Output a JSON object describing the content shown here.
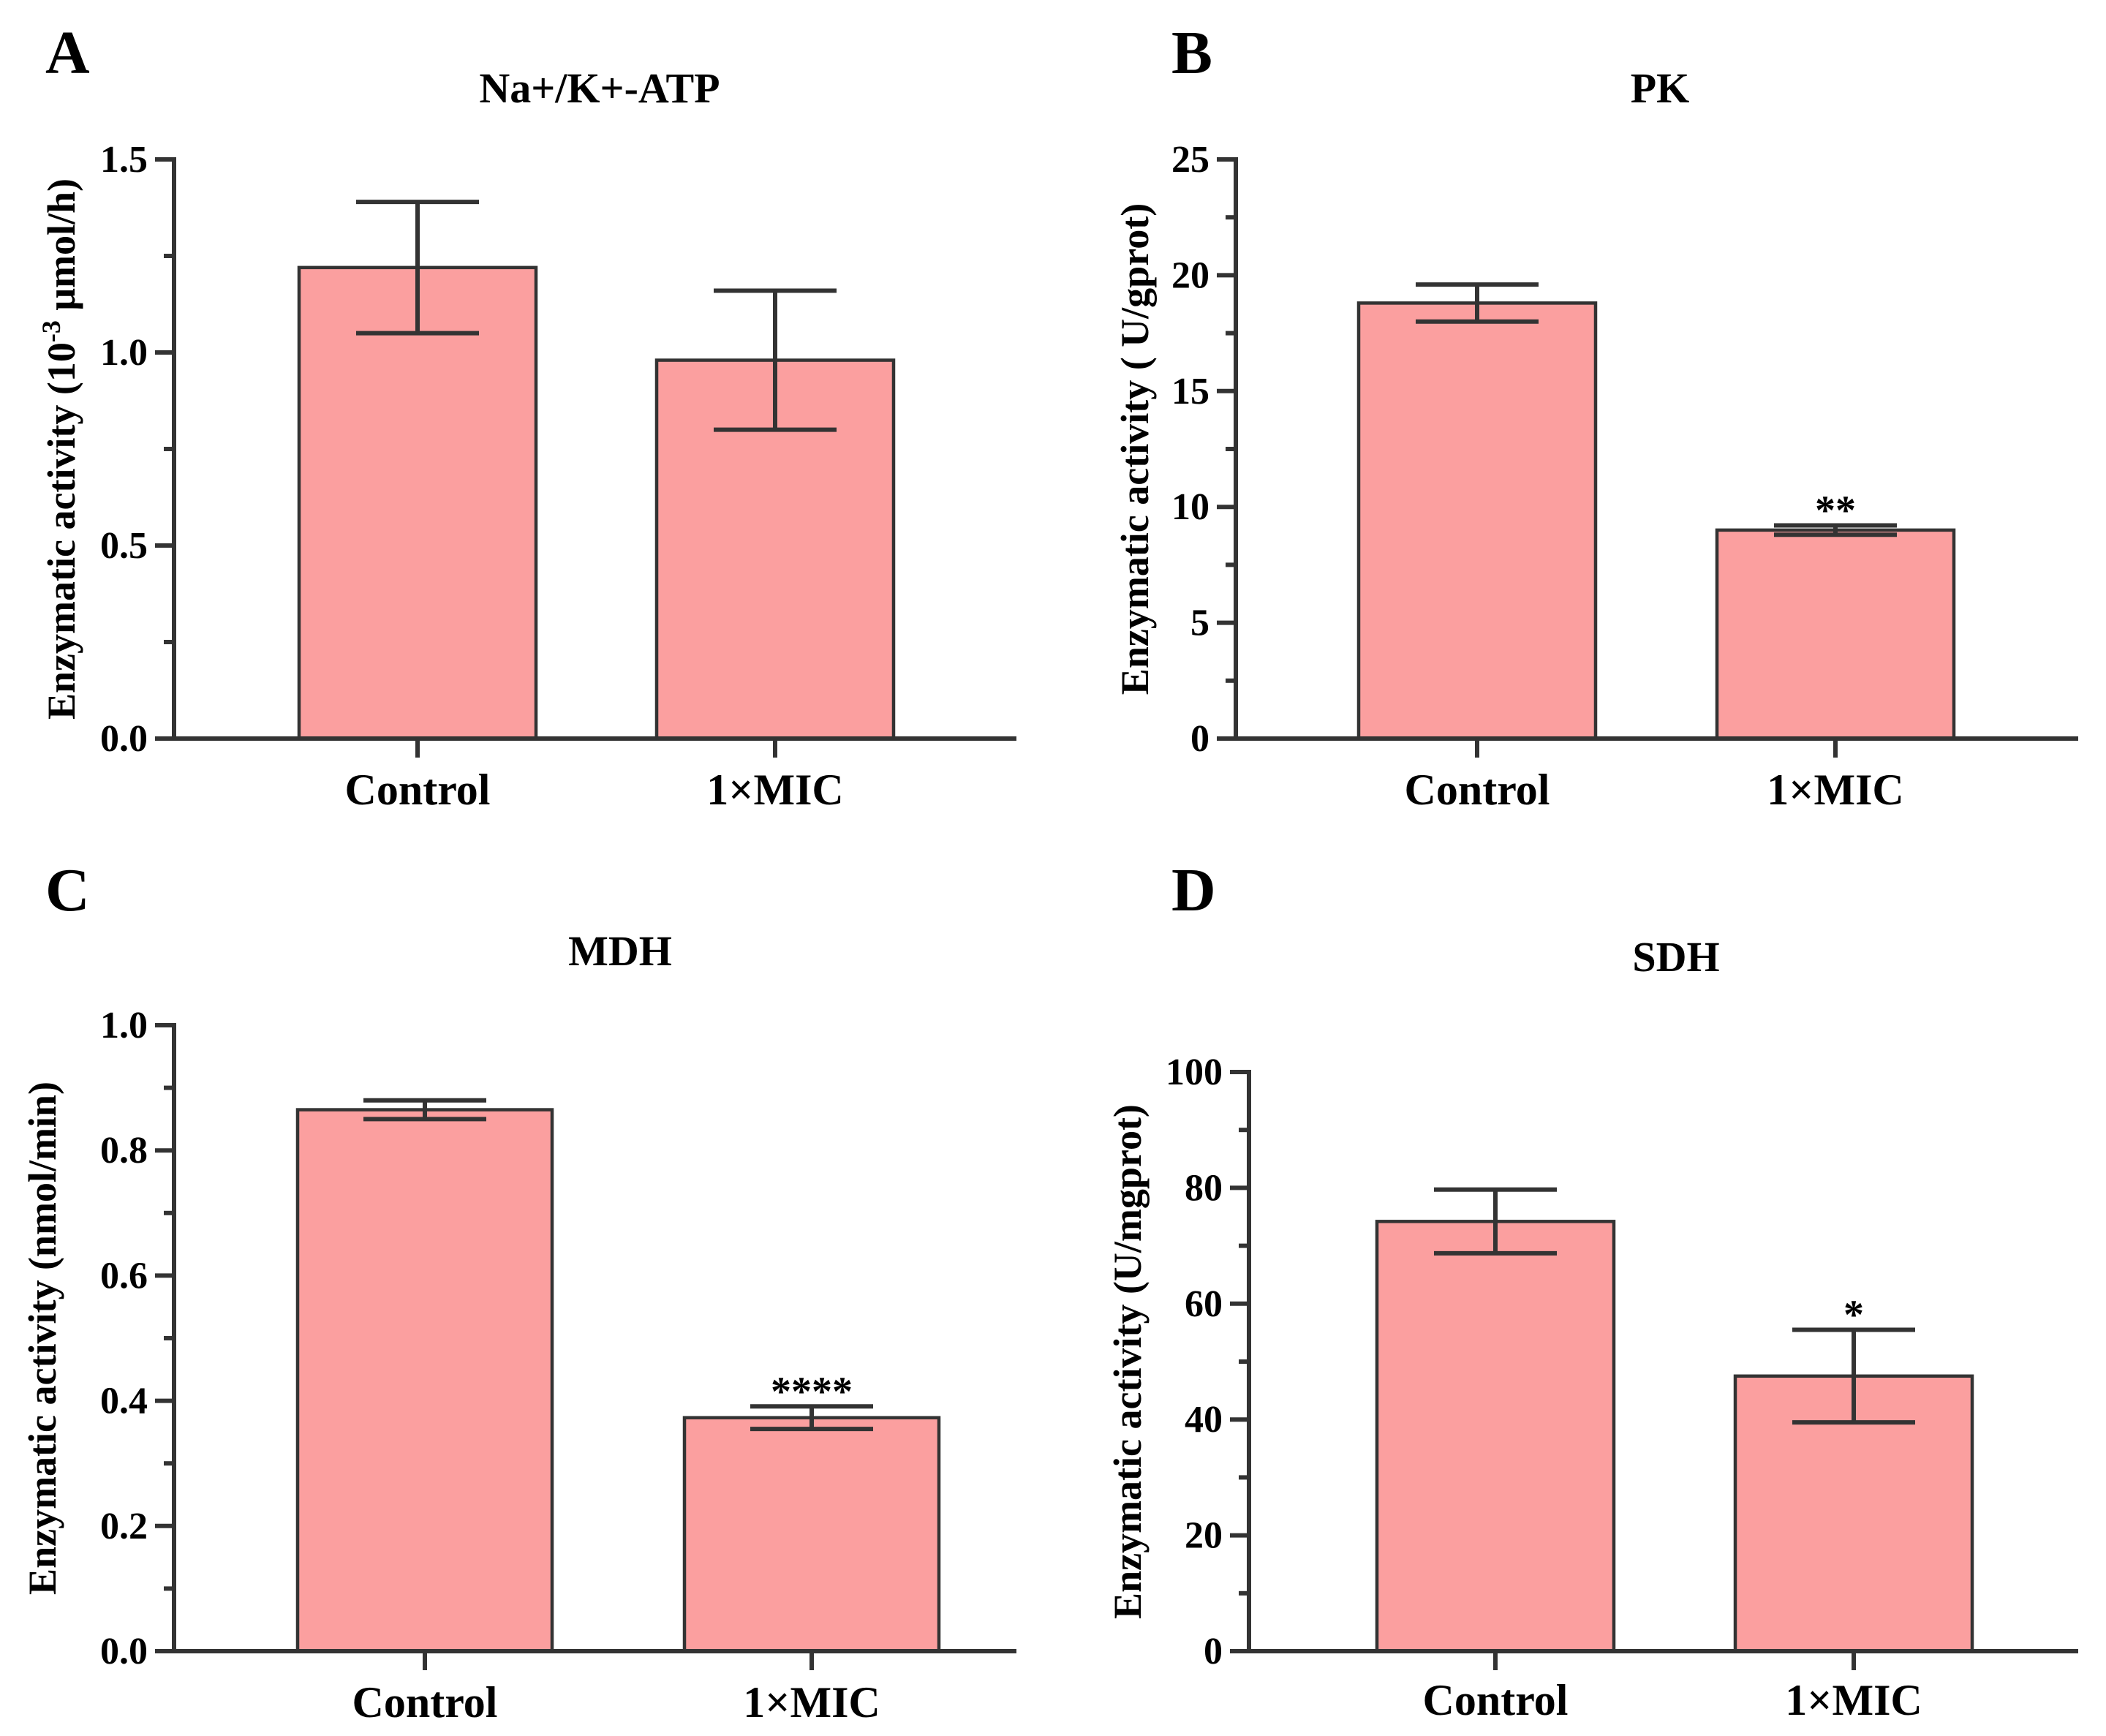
{
  "chart_data": [
    {
      "panel": "A",
      "type": "bar",
      "title": "Na+/K+-ATP",
      "ylabel": "Enzymatic activity (10",
      "ylabel_sup": "-3",
      "ylabel_tail": " μmol/h)",
      "xlabel": "",
      "categories": [
        "Control",
        "1×MIC"
      ],
      "values": [
        1.22,
        0.98
      ],
      "errors": [
        0.17,
        0.18
      ],
      "significance": [
        "",
        ""
      ],
      "ylim": [
        0,
        1.5
      ],
      "ticks": [
        0.0,
        0.5,
        1.0,
        1.5
      ],
      "tick_labels": [
        "0.0",
        "0.5",
        "1.0",
        "1.5"
      ],
      "minor_ticks": [
        0.25,
        0.75,
        1.25
      ],
      "colors": {
        "bar": "#fb9f9f",
        "stroke": "#333333"
      }
    },
    {
      "panel": "B",
      "type": "bar",
      "title": "PK",
      "ylabel": "Enzymatic activity ( U/gprot)",
      "ylabel_sup": "",
      "ylabel_tail": "",
      "xlabel": "",
      "categories": [
        "Control",
        "1×MIC"
      ],
      "values": [
        18.8,
        9.0
      ],
      "errors": [
        0.8,
        0.2
      ],
      "significance": [
        "",
        "**"
      ],
      "ylim": [
        0,
        25
      ],
      "ticks": [
        0,
        5,
        10,
        15,
        20,
        25
      ],
      "tick_labels": [
        "0",
        "5",
        "10",
        "15",
        "20",
        "25"
      ],
      "minor_ticks": [
        2.5,
        7.5,
        12.5,
        17.5,
        22.5
      ],
      "colors": {
        "bar": "#fb9f9f",
        "stroke": "#333333"
      }
    },
    {
      "panel": "C",
      "type": "bar",
      "title": "MDH",
      "ylabel": "Enzymatic activity (nmol/min)",
      "ylabel_sup": "",
      "ylabel_tail": "",
      "xlabel": "",
      "categories": [
        "Control",
        "1×MIC"
      ],
      "values": [
        0.865,
        0.373
      ],
      "errors": [
        0.015,
        0.018
      ],
      "significance": [
        "",
        "****"
      ],
      "ylim": [
        0,
        1.0
      ],
      "ticks": [
        0.0,
        0.2,
        0.4,
        0.6,
        0.8,
        1.0
      ],
      "tick_labels": [
        "0.0",
        "0.2",
        "0.4",
        "0.6",
        "0.8",
        "1.0"
      ],
      "minor_ticks": [
        0.1,
        0.3,
        0.5,
        0.7,
        0.9
      ],
      "colors": {
        "bar": "#fb9f9f",
        "stroke": "#333333"
      }
    },
    {
      "panel": "D",
      "type": "bar",
      "title": "SDH",
      "ylabel": "Enzymatic activity (U/mgprot)",
      "ylabel_sup": "",
      "ylabel_tail": "",
      "xlabel": "",
      "categories": [
        "Control",
        "1×MIC"
      ],
      "values": [
        74.2,
        47.5
      ],
      "errors": [
        5.5,
        8.0
      ],
      "significance": [
        "",
        "*"
      ],
      "ylim": [
        0,
        100
      ],
      "ticks": [
        0,
        20,
        40,
        60,
        80,
        100
      ],
      "tick_labels": [
        "0",
        "20",
        "40",
        "60",
        "80",
        "100"
      ],
      "minor_ticks": [
        10,
        30,
        50,
        70,
        90
      ],
      "colors": {
        "bar": "#fb9f9f",
        "stroke": "#333333"
      }
    }
  ]
}
